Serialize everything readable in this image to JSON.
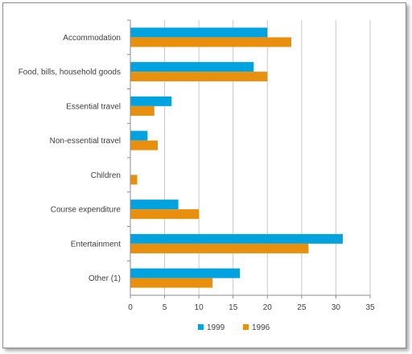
{
  "chart_data": {
    "type": "bar",
    "orientation": "horizontal",
    "categories": [
      "Accommodation",
      "Food, bills, household goods",
      "Essential travel",
      "Non-essential travel",
      "Children",
      "Course expenditure",
      "Entertainment",
      "Other (1)"
    ],
    "series": [
      {
        "name": "1999",
        "color": "#00a2e0",
        "values": [
          20,
          18,
          6,
          2.5,
          0,
          7,
          31,
          16
        ]
      },
      {
        "name": "1996",
        "color": "#e8900d",
        "values": [
          23.5,
          20,
          3.5,
          4,
          1,
          10,
          26,
          12
        ]
      }
    ],
    "xlim": [
      0,
      35
    ],
    "xticks": [
      "0",
      "5",
      "10",
      "15",
      "20",
      "25",
      "30",
      "35"
    ],
    "title": "",
    "xlabel": "",
    "ylabel": "",
    "grid": "vertical",
    "legend": "bottom"
  }
}
